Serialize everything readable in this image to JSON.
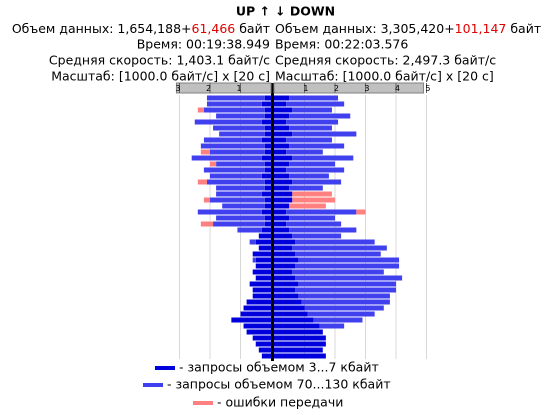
{
  "chart_data": [
    {
      "type": "bar",
      "title": "UP ↑",
      "reversed": true,
      "grid": true,
      "stats": {
        "volume": [
          "Объем данных: 1,654,188+",
          "61,466",
          " байт"
        ],
        "time": "Время: 00:19:38.949",
        "speed": "Средняя скорость: 1,403.1 байт/с",
        "scale": "Масштаб: [1000.0 байт/с] x [20 с]"
      },
      "xlim": [
        0,
        3.1
      ],
      "xticks": [
        1,
        2,
        3
      ],
      "series": [
        {
          "name": "- запросы объемом 3...7 кбайт",
          "color": "#0000dd",
          "values": [
            0.2,
            0.3,
            0.2,
            0.2,
            0.3,
            0.2,
            0.2,
            0.3,
            0.2,
            0.2,
            0.3,
            0.2,
            0.2,
            0.3,
            0.2,
            0.2,
            0.3,
            0.2,
            0.2,
            0.3,
            0.2,
            0.2,
            0.3,
            0.4,
            0.5,
            0.4,
            0.6,
            0.5,
            0.5,
            0.6,
            0.5,
            0.7,
            0.6,
            0.6,
            0.8,
            0.9,
            1.0,
            1.3,
            0.9,
            0.8,
            0.6,
            0.5,
            0.4,
            0.3
          ]
        },
        {
          "name": "- запросы объемом 70...130 кбайт",
          "color": "#4040ee",
          "values": [
            1.9,
            1.8,
            2.0,
            1.6,
            2.2,
            1.7,
            1.5,
            1.9,
            2.1,
            1.8,
            2.3,
            1.6,
            2.0,
            1.7,
            1.9,
            1.6,
            1.5,
            1.8,
            1.4,
            2.1,
            1.6,
            1.7,
            0.8,
            0,
            0.2,
            0,
            0,
            0.1,
            0,
            0,
            0,
            0,
            0,
            0,
            0,
            0,
            0,
            0,
            0,
            0,
            0,
            0,
            0,
            0
          ]
        },
        {
          "name": "- ошибки передачи",
          "color": "#ff8080",
          "values": [
            0,
            0,
            0.2,
            0,
            0,
            0,
            0,
            0,
            0,
            0.3,
            0,
            0.2,
            0,
            0,
            0.3,
            0,
            0,
            0.2,
            0,
            0,
            0,
            0.4,
            0,
            0,
            0,
            0,
            0,
            0,
            0,
            0,
            0,
            0,
            0,
            0,
            0,
            0,
            0,
            0,
            0,
            0,
            0,
            0,
            0,
            0
          ]
        }
      ]
    },
    {
      "type": "bar",
      "title": "↓ DOWN",
      "reversed": false,
      "grid": true,
      "stats": {
        "volume": [
          "Объем данных: 3,305,420+",
          "101,147",
          " байт"
        ],
        "time": "Время: 00:22:03.576",
        "speed": "Средняя скорость: 2,497.3 байт/с",
        "scale": "Масштаб: [1000.0 байт/с] x [20 с]"
      },
      "xlim": [
        0,
        4.9
      ],
      "xticks": [
        1,
        2,
        3,
        4,
        5
      ],
      "series": [
        {
          "color": "#0000dd",
          "values": [
            0.5,
            0.4,
            0.6,
            0.5,
            0.4,
            0.5,
            0.6,
            0.4,
            0.5,
            0.4,
            0.6,
            0.5,
            0.4,
            0.5,
            0.6,
            0.5,
            0.6,
            0.6,
            0.5,
            0.4,
            0.5,
            0.4,
            0.5,
            0.6,
            0.7,
            0.6,
            0.7,
            0.8,
            0.7,
            0.6,
            0.7,
            0.8,
            0.7,
            0.8,
            0.9,
            1.0,
            1.1,
            1.3,
            1.5,
            1.6,
            1.7,
            1.7,
            1.6,
            1.7
          ]
        },
        {
          "color": "#4040ee",
          "values": [
            1.6,
            1.9,
            1.3,
            2.0,
            1.7,
            1.4,
            2.1,
            1.5,
            1.8,
            1.2,
            2.0,
            1.5,
            1.9,
            1.3,
            1.6,
            1.1,
            0,
            0,
            0,
            2.3,
            1.5,
            1.8,
            2.2,
            1.6,
            2.6,
            3.1,
            2.8,
            3.3,
            3.4,
            3.0,
            3.5,
            3.2,
            3.3,
            3.0,
            2.9,
            2.6,
            2.2,
            1.6,
            0.8,
            0,
            0,
            0,
            0,
            0
          ]
        },
        {
          "color": "#ff8080",
          "values": [
            0,
            0,
            0,
            0,
            0,
            0,
            0,
            0,
            0,
            0,
            0,
            0,
            0,
            0,
            0,
            0,
            1.3,
            1.4,
            1.2,
            0.3,
            0,
            0,
            0,
            0,
            0,
            0,
            0,
            0,
            0,
            0,
            0,
            0,
            0,
            0,
            0,
            0,
            0,
            0,
            0,
            0,
            0,
            0,
            0,
            0
          ]
        }
      ]
    }
  ]
}
